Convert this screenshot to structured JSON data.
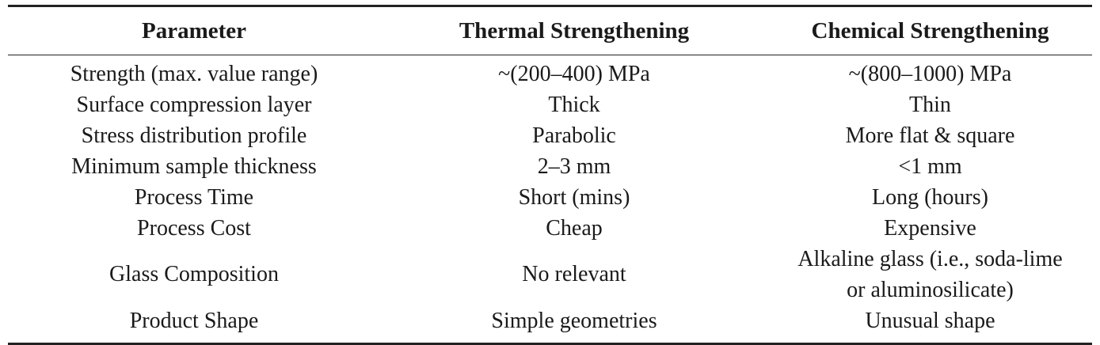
{
  "table": {
    "headers": [
      "Parameter",
      "Thermal Strengthening",
      "Chemical Strengthening"
    ],
    "rows": [
      [
        "Strength (max. value range)",
        "~(200–400) MPa",
        "~(800–1000) MPa"
      ],
      [
        "Surface compression layer",
        "Thick",
        "Thin"
      ],
      [
        "Stress distribution profile",
        "Parabolic",
        "More flat & square"
      ],
      [
        "Minimum sample thickness",
        "2–3 mm",
        "<1 mm"
      ],
      [
        "Process Time",
        "Short (mins)",
        "Long (hours)"
      ],
      [
        "Process Cost",
        "Cheap",
        "Expensive"
      ],
      [
        "Glass Composition",
        "No relevant",
        [
          "Alkaline glass (i.e., soda-lime",
          "or aluminosilicate)"
        ]
      ],
      [
        "Product Shape",
        "Simple geometries",
        "Unusual shape"
      ]
    ]
  }
}
